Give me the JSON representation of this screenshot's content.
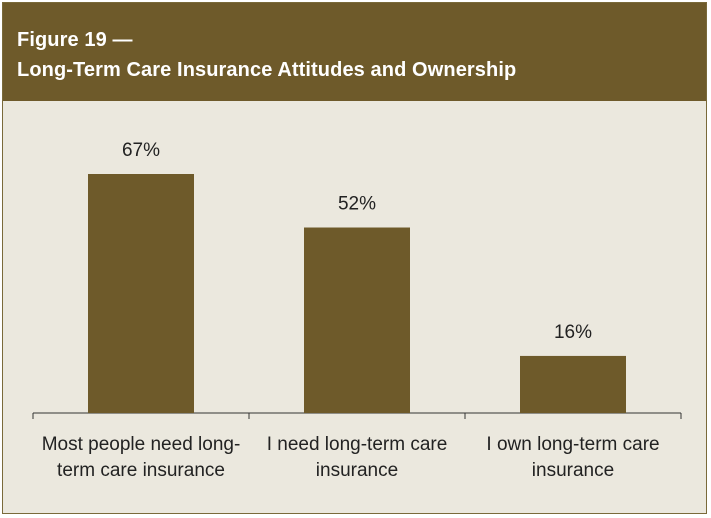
{
  "header": {
    "figure_label": "Figure 19 —",
    "title": "Long-Term Care Insurance Attitudes and Ownership"
  },
  "colors": {
    "bar": "#6e5a2a",
    "background": "#ebe8de",
    "header": "#6e5a2a",
    "axis": "#333333"
  },
  "chart_data": {
    "type": "bar",
    "title": "Long-Term Care Insurance Attitudes and Ownership",
    "categories": [
      [
        "Most people need long-",
        "term care insurance"
      ],
      [
        "I need long-term care",
        "insurance"
      ],
      [
        "I own long-term care",
        "insurance"
      ]
    ],
    "values": [
      67,
      52,
      16
    ],
    "value_labels": [
      "67%",
      "52%",
      "16%"
    ],
    "xlabel": "",
    "ylabel": "",
    "ylim": [
      0,
      70
    ],
    "grid": false,
    "legend": "none"
  }
}
